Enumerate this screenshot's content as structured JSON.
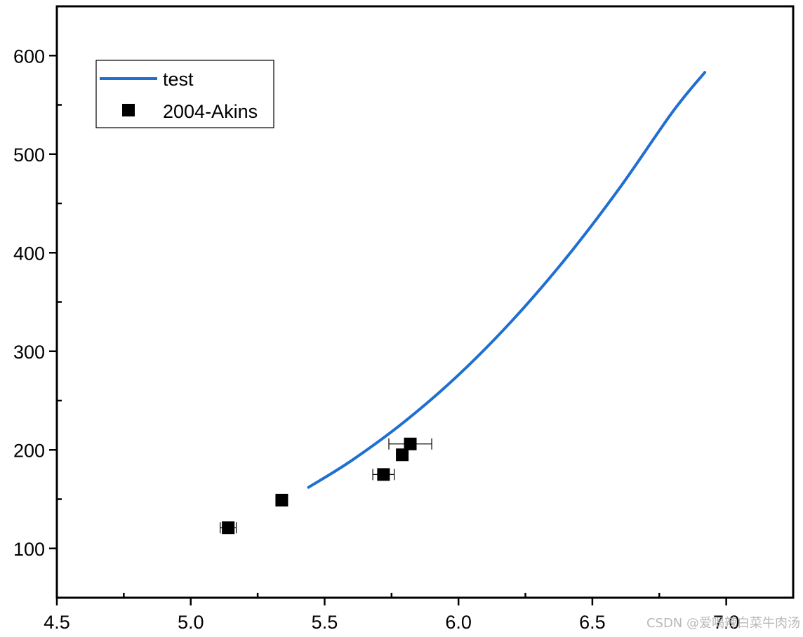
{
  "chart_data": {
    "type": "line",
    "title": "",
    "xlabel": "",
    "ylabel": "",
    "xlim": [
      4.5,
      7.25
    ],
    "ylim": [
      50,
      650
    ],
    "x_ticks": [
      4.5,
      5.0,
      5.5,
      6.0,
      6.5,
      7.0
    ],
    "x_tick_labels": [
      "4.5",
      "5.0",
      "5.5",
      "6.0",
      "6.5",
      "7.0"
    ],
    "y_ticks": [
      100,
      200,
      300,
      400,
      500,
      600
    ],
    "y_tick_labels": [
      "100",
      "200",
      "300",
      "400",
      "500",
      "600"
    ],
    "grid": false,
    "legend_position": "top-left",
    "series": [
      {
        "name": "test",
        "kind": "line",
        "color": "#1f6fd1",
        "x": [
          5.44,
          5.6,
          5.8,
          6.0,
          6.2,
          6.4,
          6.6,
          6.8,
          6.92
        ],
        "y": [
          162,
          189,
          229,
          276,
          331,
          394,
          465,
          543,
          583
        ]
      },
      {
        "name": "2004-Akins",
        "kind": "scatter",
        "color": "#000000",
        "marker": "square",
        "points": [
          {
            "x": 5.14,
            "y": 121,
            "xerr": 0.03
          },
          {
            "x": 5.34,
            "y": 149,
            "xerr": 0
          },
          {
            "x": 5.72,
            "y": 175,
            "xerr": 0.04
          },
          {
            "x": 5.79,
            "y": 195,
            "xerr": 0
          },
          {
            "x": 5.82,
            "y": 206,
            "xerr": 0.08
          }
        ]
      }
    ]
  },
  "watermark": "CSDN @爱喝辣白菜牛肉汤"
}
